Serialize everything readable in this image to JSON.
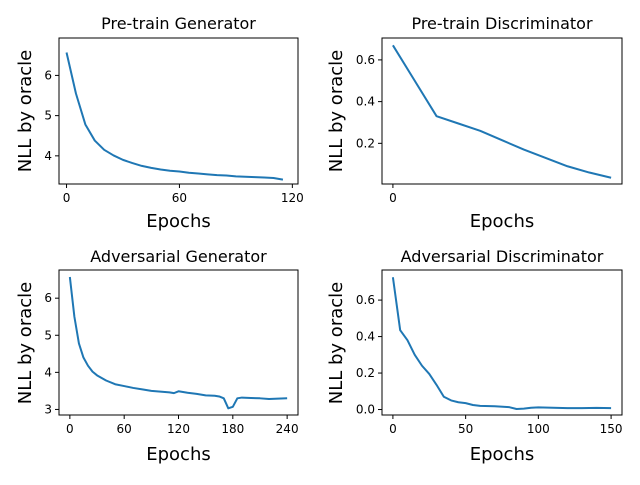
{
  "colors": {
    "line": "#1f77b4",
    "axis": "#000000",
    "background": "#ffffff"
  },
  "chart_data": [
    {
      "type": "line",
      "title": "Pre-train Generator",
      "xlabel": "Epochs",
      "ylabel": "NLL by oracle",
      "xlim": [
        -4,
        123
      ],
      "ylim": [
        3.3,
        6.93
      ],
      "xticks": [
        0,
        60,
        120
      ],
      "yticks": [
        4,
        5,
        6
      ],
      "grid": false,
      "legend": "none",
      "series": [
        {
          "x": [
            0,
            5,
            10,
            15,
            20,
            25,
            30,
            35,
            40,
            45,
            50,
            55,
            60,
            65,
            70,
            75,
            80,
            85,
            90,
            95,
            100,
            105,
            110,
            115
          ],
          "y": [
            6.57,
            5.55,
            4.78,
            4.38,
            4.15,
            4.01,
            3.9,
            3.82,
            3.75,
            3.7,
            3.66,
            3.63,
            3.61,
            3.58,
            3.56,
            3.54,
            3.52,
            3.51,
            3.49,
            3.48,
            3.47,
            3.46,
            3.45,
            3.41
          ]
        }
      ]
    },
    {
      "type": "line",
      "title": "Pre-train Discriminator",
      "xlabel": "Epochs",
      "ylabel": "NLL by oracle",
      "xlim": [
        -0.5,
        10.5
      ],
      "ylim": [
        0.005,
        0.705
      ],
      "xticks": [
        0
      ],
      "yticks": [
        0.2,
        0.4,
        0.6
      ],
      "grid": false,
      "legend": "none",
      "series": [
        {
          "x": [
            0,
            1,
            2,
            3,
            4,
            5,
            6,
            7,
            8,
            9,
            10
          ],
          "y": [
            0.67,
            0.5,
            0.33,
            0.295,
            0.26,
            0.215,
            0.17,
            0.13,
            0.09,
            0.06,
            0.035
          ]
        }
      ]
    },
    {
      "type": "line",
      "title": "Adversarial Generator",
      "xlabel": "Epochs",
      "ylabel": "NLL by oracle",
      "xlim": [
        -12,
        252
      ],
      "ylim": [
        2.85,
        6.76
      ],
      "xticks": [
        0,
        60,
        120,
        180,
        240
      ],
      "yticks": [
        3,
        4,
        5,
        6
      ],
      "grid": false,
      "legend": "none",
      "series": [
        {
          "x": [
            0,
            5,
            10,
            15,
            20,
            25,
            30,
            40,
            50,
            60,
            70,
            80,
            90,
            100,
            110,
            115,
            120,
            130,
            140,
            150,
            160,
            165,
            170,
            175,
            180,
            185,
            190,
            200,
            210,
            220,
            230,
            240
          ],
          "y": [
            6.57,
            5.5,
            4.78,
            4.4,
            4.18,
            4.02,
            3.92,
            3.78,
            3.68,
            3.63,
            3.58,
            3.54,
            3.5,
            3.48,
            3.46,
            3.44,
            3.49,
            3.45,
            3.42,
            3.38,
            3.37,
            3.35,
            3.3,
            3.03,
            3.07,
            3.3,
            3.32,
            3.31,
            3.3,
            3.28,
            3.29,
            3.3
          ]
        }
      ]
    },
    {
      "type": "line",
      "title": "Adversarial Discriminator",
      "xlabel": "Epochs",
      "ylabel": "NLL by oracle",
      "xlim": [
        -7.5,
        157.5
      ],
      "ylim": [
        -0.03,
        0.765
      ],
      "xticks": [
        0,
        50,
        100,
        150
      ],
      "yticks": [
        0.0,
        0.2,
        0.4,
        0.6
      ],
      "grid": false,
      "legend": "none",
      "series": [
        {
          "x": [
            0,
            5,
            10,
            15,
            20,
            25,
            30,
            35,
            40,
            45,
            50,
            55,
            60,
            70,
            80,
            85,
            90,
            95,
            100,
            110,
            120,
            130,
            140,
            150
          ],
          "y": [
            0.725,
            0.435,
            0.38,
            0.3,
            0.24,
            0.195,
            0.135,
            0.07,
            0.05,
            0.04,
            0.035,
            0.025,
            0.02,
            0.018,
            0.013,
            0.003,
            0.005,
            0.01,
            0.012,
            0.01,
            0.008,
            0.008,
            0.009,
            0.008
          ]
        }
      ]
    }
  ]
}
